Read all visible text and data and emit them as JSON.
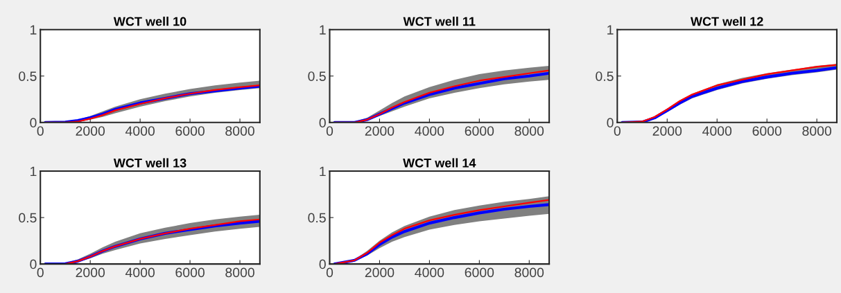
{
  "chart_data": [
    {
      "type": "line",
      "title": "WCT well 10",
      "x": [
        200,
        1000,
        1500,
        2000,
        2500,
        3000,
        4000,
        5000,
        6000,
        7000,
        8000,
        8800
      ],
      "xlim": [
        0,
        8800
      ],
      "xticks": [
        0,
        2000,
        4000,
        6000,
        8000
      ],
      "ylim": [
        0,
        1
      ],
      "yticks": [
        0,
        0.5,
        1
      ],
      "grid": false,
      "series": [
        {
          "color": "#0000ff",
          "values": [
            0,
            0.003,
            0.02,
            0.05,
            0.09,
            0.14,
            0.21,
            0.26,
            0.31,
            0.34,
            0.37,
            0.39
          ],
          "lower": [
            0,
            0,
            0.005,
            0.03,
            0.06,
            0.1,
            0.17,
            0.23,
            0.28,
            0.32,
            0.35,
            0.37
          ],
          "upper": [
            0,
            0.01,
            0.03,
            0.07,
            0.12,
            0.17,
            0.25,
            0.31,
            0.36,
            0.4,
            0.43,
            0.45
          ]
        },
        {
          "color": "#ff0000",
          "values": [
            0,
            0,
            0.01,
            0.04,
            0.08,
            0.13,
            0.2,
            0.26,
            0.31,
            0.35,
            0.38,
            0.4
          ]
        }
      ]
    },
    {
      "type": "line",
      "title": "WCT well 11",
      "x": [
        200,
        1000,
        1500,
        2000,
        2500,
        3000,
        4000,
        5000,
        6000,
        7000,
        8000,
        8800
      ],
      "xlim": [
        0,
        8800
      ],
      "xticks": [
        0,
        2000,
        4000,
        6000,
        8000
      ],
      "ylim": [
        0,
        1
      ],
      "yticks": [
        0,
        0.5,
        1
      ],
      "grid": false,
      "series": [
        {
          "color": "#0000ff",
          "values": [
            0,
            0,
            0.03,
            0.09,
            0.15,
            0.21,
            0.3,
            0.37,
            0.42,
            0.47,
            0.5,
            0.53
          ],
          "lower": [
            0,
            0,
            0.02,
            0.07,
            0.12,
            0.17,
            0.26,
            0.32,
            0.37,
            0.41,
            0.44,
            0.46
          ],
          "upper": [
            0,
            0.01,
            0.05,
            0.13,
            0.21,
            0.28,
            0.38,
            0.46,
            0.52,
            0.56,
            0.59,
            0.61
          ]
        },
        {
          "color": "#ff0000",
          "values": [
            0,
            0,
            0.03,
            0.09,
            0.16,
            0.22,
            0.32,
            0.39,
            0.45,
            0.49,
            0.53,
            0.56
          ]
        }
      ]
    },
    {
      "type": "line",
      "title": "WCT well 12",
      "x": [
        200,
        1000,
        1500,
        2000,
        2500,
        3000,
        4000,
        5000,
        6000,
        7000,
        8000,
        8800
      ],
      "xlim": [
        0,
        8800
      ],
      "xticks": [
        0,
        2000,
        4000,
        6000,
        8000
      ],
      "ylim": [
        0,
        1
      ],
      "yticks": [
        0,
        0.5,
        1
      ],
      "grid": false,
      "series": [
        {
          "color": "#0000ff",
          "values": [
            0,
            0.005,
            0.05,
            0.13,
            0.21,
            0.28,
            0.37,
            0.44,
            0.49,
            0.53,
            0.56,
            0.59
          ],
          "lower": [
            0,
            0,
            0.04,
            0.11,
            0.19,
            0.26,
            0.35,
            0.42,
            0.47,
            0.51,
            0.54,
            0.57
          ],
          "upper": [
            0,
            0.01,
            0.07,
            0.15,
            0.24,
            0.31,
            0.41,
            0.48,
            0.53,
            0.57,
            0.61,
            0.63
          ]
        },
        {
          "color": "#ff0000",
          "values": [
            0,
            0.01,
            0.06,
            0.14,
            0.23,
            0.3,
            0.4,
            0.46,
            0.52,
            0.56,
            0.6,
            0.62
          ]
        }
      ]
    },
    {
      "type": "line",
      "title": "WCT well 13",
      "x": [
        200,
        1000,
        1500,
        2000,
        2500,
        3000,
        4000,
        5000,
        6000,
        7000,
        8000,
        8800
      ],
      "xlim": [
        0,
        8800
      ],
      "xticks": [
        0,
        2000,
        4000,
        6000,
        8000
      ],
      "ylim": [
        0,
        1
      ],
      "yticks": [
        0,
        0.5,
        1
      ],
      "grid": false,
      "series": [
        {
          "color": "#0000ff",
          "values": [
            0,
            0.003,
            0.03,
            0.08,
            0.14,
            0.19,
            0.27,
            0.33,
            0.37,
            0.41,
            0.44,
            0.46
          ],
          "lower": [
            0,
            0,
            0.02,
            0.06,
            0.11,
            0.15,
            0.22,
            0.27,
            0.31,
            0.35,
            0.38,
            0.4
          ],
          "upper": [
            0,
            0.01,
            0.05,
            0.11,
            0.18,
            0.24,
            0.33,
            0.39,
            0.44,
            0.48,
            0.51,
            0.53
          ]
        },
        {
          "color": "#ff0000",
          "values": [
            0,
            0,
            0.03,
            0.08,
            0.14,
            0.19,
            0.27,
            0.33,
            0.38,
            0.42,
            0.46,
            0.48
          ]
        }
      ]
    },
    {
      "type": "line",
      "title": "WCT well 14",
      "x": [
        200,
        1000,
        1500,
        2000,
        2500,
        3000,
        4000,
        5000,
        6000,
        7000,
        8000,
        8800
      ],
      "xlim": [
        0,
        8800
      ],
      "xticks": [
        0,
        2000,
        4000,
        6000,
        8000
      ],
      "ylim": [
        0,
        1
      ],
      "yticks": [
        0,
        0.5,
        1
      ],
      "grid": false,
      "series": [
        {
          "color": "#0000ff",
          "values": [
            0,
            0.04,
            0.11,
            0.21,
            0.29,
            0.35,
            0.44,
            0.5,
            0.55,
            0.59,
            0.62,
            0.64
          ],
          "lower": [
            0,
            0.03,
            0.09,
            0.17,
            0.24,
            0.29,
            0.37,
            0.42,
            0.46,
            0.49,
            0.52,
            0.54
          ],
          "upper": [
            0,
            0.05,
            0.14,
            0.25,
            0.34,
            0.41,
            0.51,
            0.58,
            0.63,
            0.67,
            0.7,
            0.73
          ]
        },
        {
          "color": "#ff0000",
          "values": [
            0,
            0.04,
            0.12,
            0.23,
            0.31,
            0.38,
            0.47,
            0.53,
            0.58,
            0.62,
            0.66,
            0.69
          ]
        }
      ]
    }
  ]
}
